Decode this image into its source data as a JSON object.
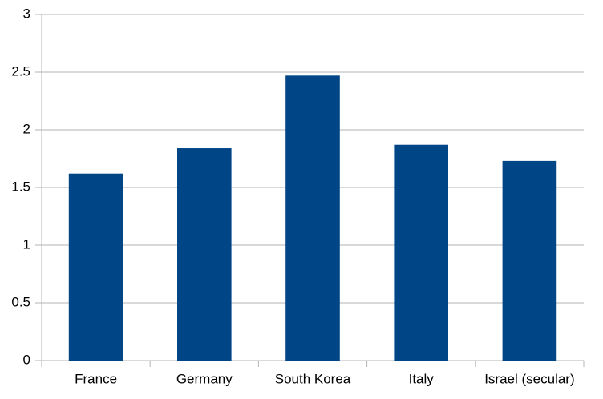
{
  "chart_data": {
    "type": "bar",
    "categories": [
      "France",
      "Germany",
      "South Korea",
      "Italy",
      "Israel (secular)"
    ],
    "values": [
      1.62,
      1.84,
      2.47,
      1.87,
      1.73
    ],
    "color": "#004586",
    "ylim": [
      0,
      3
    ],
    "yticks": [
      0,
      0.5,
      1,
      1.5,
      2,
      2.5,
      3
    ],
    "grid": true
  }
}
